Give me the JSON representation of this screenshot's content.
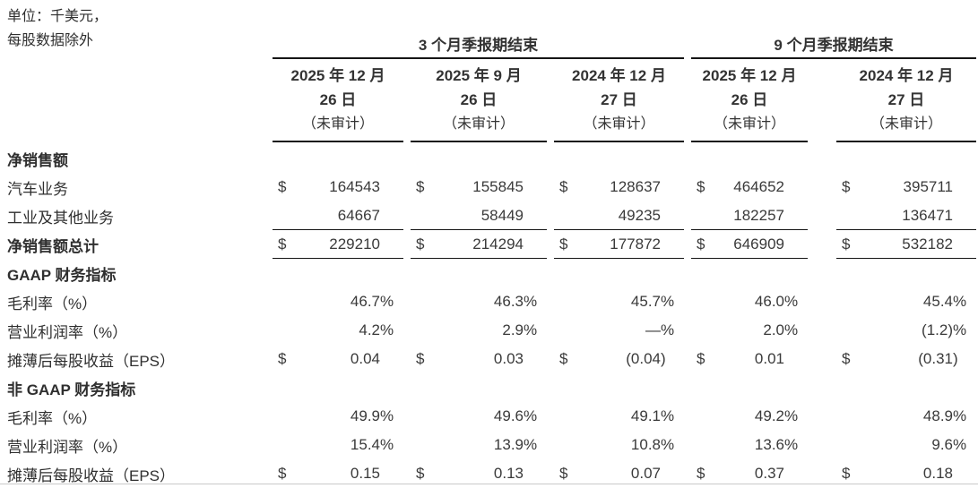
{
  "unit_note": {
    "line1": "单位：千美元，",
    "line2": "每股数据除外"
  },
  "colors": {
    "text": "#333333",
    "rule_dark": "#151515",
    "rule_light": "#c9c9c9",
    "background": "#ffffff"
  },
  "table": {
    "col_groups": [
      {
        "label": "3 个月季报期结束",
        "span": 3
      },
      {
        "label": "9 个月季报期结束",
        "span": 2
      }
    ],
    "columns": [
      {
        "lines": [
          "2025 年 12 月",
          "26 日",
          "（未审计）"
        ]
      },
      {
        "lines": [
          "2025 年 9 月",
          "26 日",
          "（未审计）"
        ]
      },
      {
        "lines": [
          "2024 年 12 月",
          "27 日",
          "（未审计）"
        ]
      },
      {
        "lines": [
          "2025 年 12 月",
          "26 日",
          "（未审计）"
        ]
      },
      {
        "lines": [
          "2024 年 12 月",
          "27 日",
          "（未审计）"
        ]
      }
    ],
    "rows": [
      {
        "label": "净销售额",
        "bold": true,
        "border": false,
        "cells": null
      },
      {
        "label": "汽车业务",
        "bold": false,
        "border": false,
        "cells": [
          {
            "pre": "$",
            "val": "164543",
            "suf": ""
          },
          {
            "pre": "$",
            "val": "155845",
            "suf": ""
          },
          {
            "pre": "$",
            "val": "128637",
            "suf": ""
          },
          {
            "pre": "$",
            "val": "464652",
            "suf": ""
          },
          {
            "pre": "$",
            "val": "395711",
            "suf": ""
          }
        ]
      },
      {
        "label": "工业及其他业务",
        "bold": false,
        "border": true,
        "cells": [
          {
            "pre": "",
            "val": "64667",
            "suf": ""
          },
          {
            "pre": "",
            "val": "58449",
            "suf": ""
          },
          {
            "pre": "",
            "val": "49235",
            "suf": ""
          },
          {
            "pre": "",
            "val": "182257",
            "suf": ""
          },
          {
            "pre": "",
            "val": "136471",
            "suf": ""
          }
        ]
      },
      {
        "label": "净销售额总计",
        "bold": true,
        "border": true,
        "cells": [
          {
            "pre": "$",
            "val": "229210",
            "suf": ""
          },
          {
            "pre": "$",
            "val": "214294",
            "suf": ""
          },
          {
            "pre": "$",
            "val": "177872",
            "suf": ""
          },
          {
            "pre": "$",
            "val": "646909",
            "suf": ""
          },
          {
            "pre": "$",
            "val": "532182",
            "suf": ""
          }
        ]
      },
      {
        "label": "GAAP 财务指标",
        "bold": true,
        "border": false,
        "cells": null
      },
      {
        "label": "毛利率（%）",
        "bold": false,
        "border": false,
        "cells": [
          {
            "pre": "",
            "val": "46.7",
            "suf": "%"
          },
          {
            "pre": "",
            "val": "46.3",
            "suf": "%"
          },
          {
            "pre": "",
            "val": "45.7",
            "suf": "%"
          },
          {
            "pre": "",
            "val": "46.0",
            "suf": "%"
          },
          {
            "pre": "",
            "val": "45.4",
            "suf": "%"
          }
        ]
      },
      {
        "label": "营业利润率（%）",
        "bold": false,
        "border": false,
        "cells": [
          {
            "pre": "",
            "val": "4.2",
            "suf": "%"
          },
          {
            "pre": "",
            "val": "2.9",
            "suf": "%"
          },
          {
            "pre": "",
            "val": "—",
            "suf": "%"
          },
          {
            "pre": "",
            "val": "2.0",
            "suf": "%"
          },
          {
            "pre": "",
            "val": "(1.2)",
            "suf": "%"
          }
        ]
      },
      {
        "label": "摊薄后每股收益（EPS）",
        "bold": false,
        "border": false,
        "cells": [
          {
            "pre": "$",
            "val": "0.04",
            "suf": ""
          },
          {
            "pre": "$",
            "val": "0.03",
            "suf": ""
          },
          {
            "pre": "$",
            "val": "(0.04",
            "suf": ")"
          },
          {
            "pre": "$",
            "val": "0.01",
            "suf": ""
          },
          {
            "pre": "$",
            "val": "(0.31",
            "suf": ")"
          }
        ]
      },
      {
        "label": "非 GAAP 财务指标",
        "bold": true,
        "border": false,
        "cells": null
      },
      {
        "label": "毛利率（%）",
        "bold": false,
        "border": false,
        "cells": [
          {
            "pre": "",
            "val": "49.9",
            "suf": "%"
          },
          {
            "pre": "",
            "val": "49.6",
            "suf": "%"
          },
          {
            "pre": "",
            "val": "49.1",
            "suf": "%"
          },
          {
            "pre": "",
            "val": "49.2",
            "suf": "%"
          },
          {
            "pre": "",
            "val": "48.9",
            "suf": "%"
          }
        ]
      },
      {
        "label": "营业利润率（%）",
        "bold": false,
        "border": false,
        "cells": [
          {
            "pre": "",
            "val": "15.4",
            "suf": "%"
          },
          {
            "pre": "",
            "val": "13.9",
            "suf": "%"
          },
          {
            "pre": "",
            "val": "10.8",
            "suf": "%"
          },
          {
            "pre": "",
            "val": "13.6",
            "suf": "%"
          },
          {
            "pre": "",
            "val": "9.6",
            "suf": "%"
          }
        ]
      },
      {
        "label": "摊薄后每股收益（EPS）",
        "bold": false,
        "border": false,
        "cells": [
          {
            "pre": "$",
            "val": "0.15",
            "suf": ""
          },
          {
            "pre": "$",
            "val": "0.13",
            "suf": ""
          },
          {
            "pre": "$",
            "val": "0.07",
            "suf": ""
          },
          {
            "pre": "$",
            "val": "0.37",
            "suf": ""
          },
          {
            "pre": "$",
            "val": "0.18",
            "suf": ""
          }
        ]
      }
    ]
  }
}
